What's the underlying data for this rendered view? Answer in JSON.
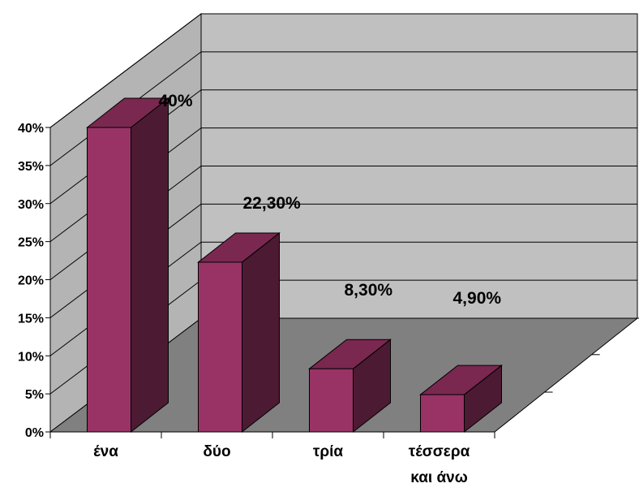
{
  "chart_data": {
    "type": "bar",
    "style": "3d-column",
    "categories": [
      [
        "ένα"
      ],
      [
        "δύο"
      ],
      [
        "τρία"
      ],
      [
        "τέσσερα",
        "και άνω"
      ]
    ],
    "values": [
      40,
      22.3,
      8.3,
      4.9
    ],
    "data_labels": [
      "40%",
      "22,30%",
      "8,30%",
      "4,90%"
    ],
    "yticks": [
      "0%",
      "5%",
      "10%",
      "15%",
      "20%",
      "25%",
      "30%",
      "35%",
      "40%"
    ],
    "ylim": [
      0,
      40
    ],
    "grid": true,
    "legend": "none",
    "colors": {
      "bar_front": "#993366",
      "bar_side": "#4D1A33",
      "bar_top": "#7A2850",
      "back_wall": "#C0C0C0",
      "side_wall": "#B4B4B4",
      "floor": "#808080",
      "gridline": "#000000"
    }
  }
}
